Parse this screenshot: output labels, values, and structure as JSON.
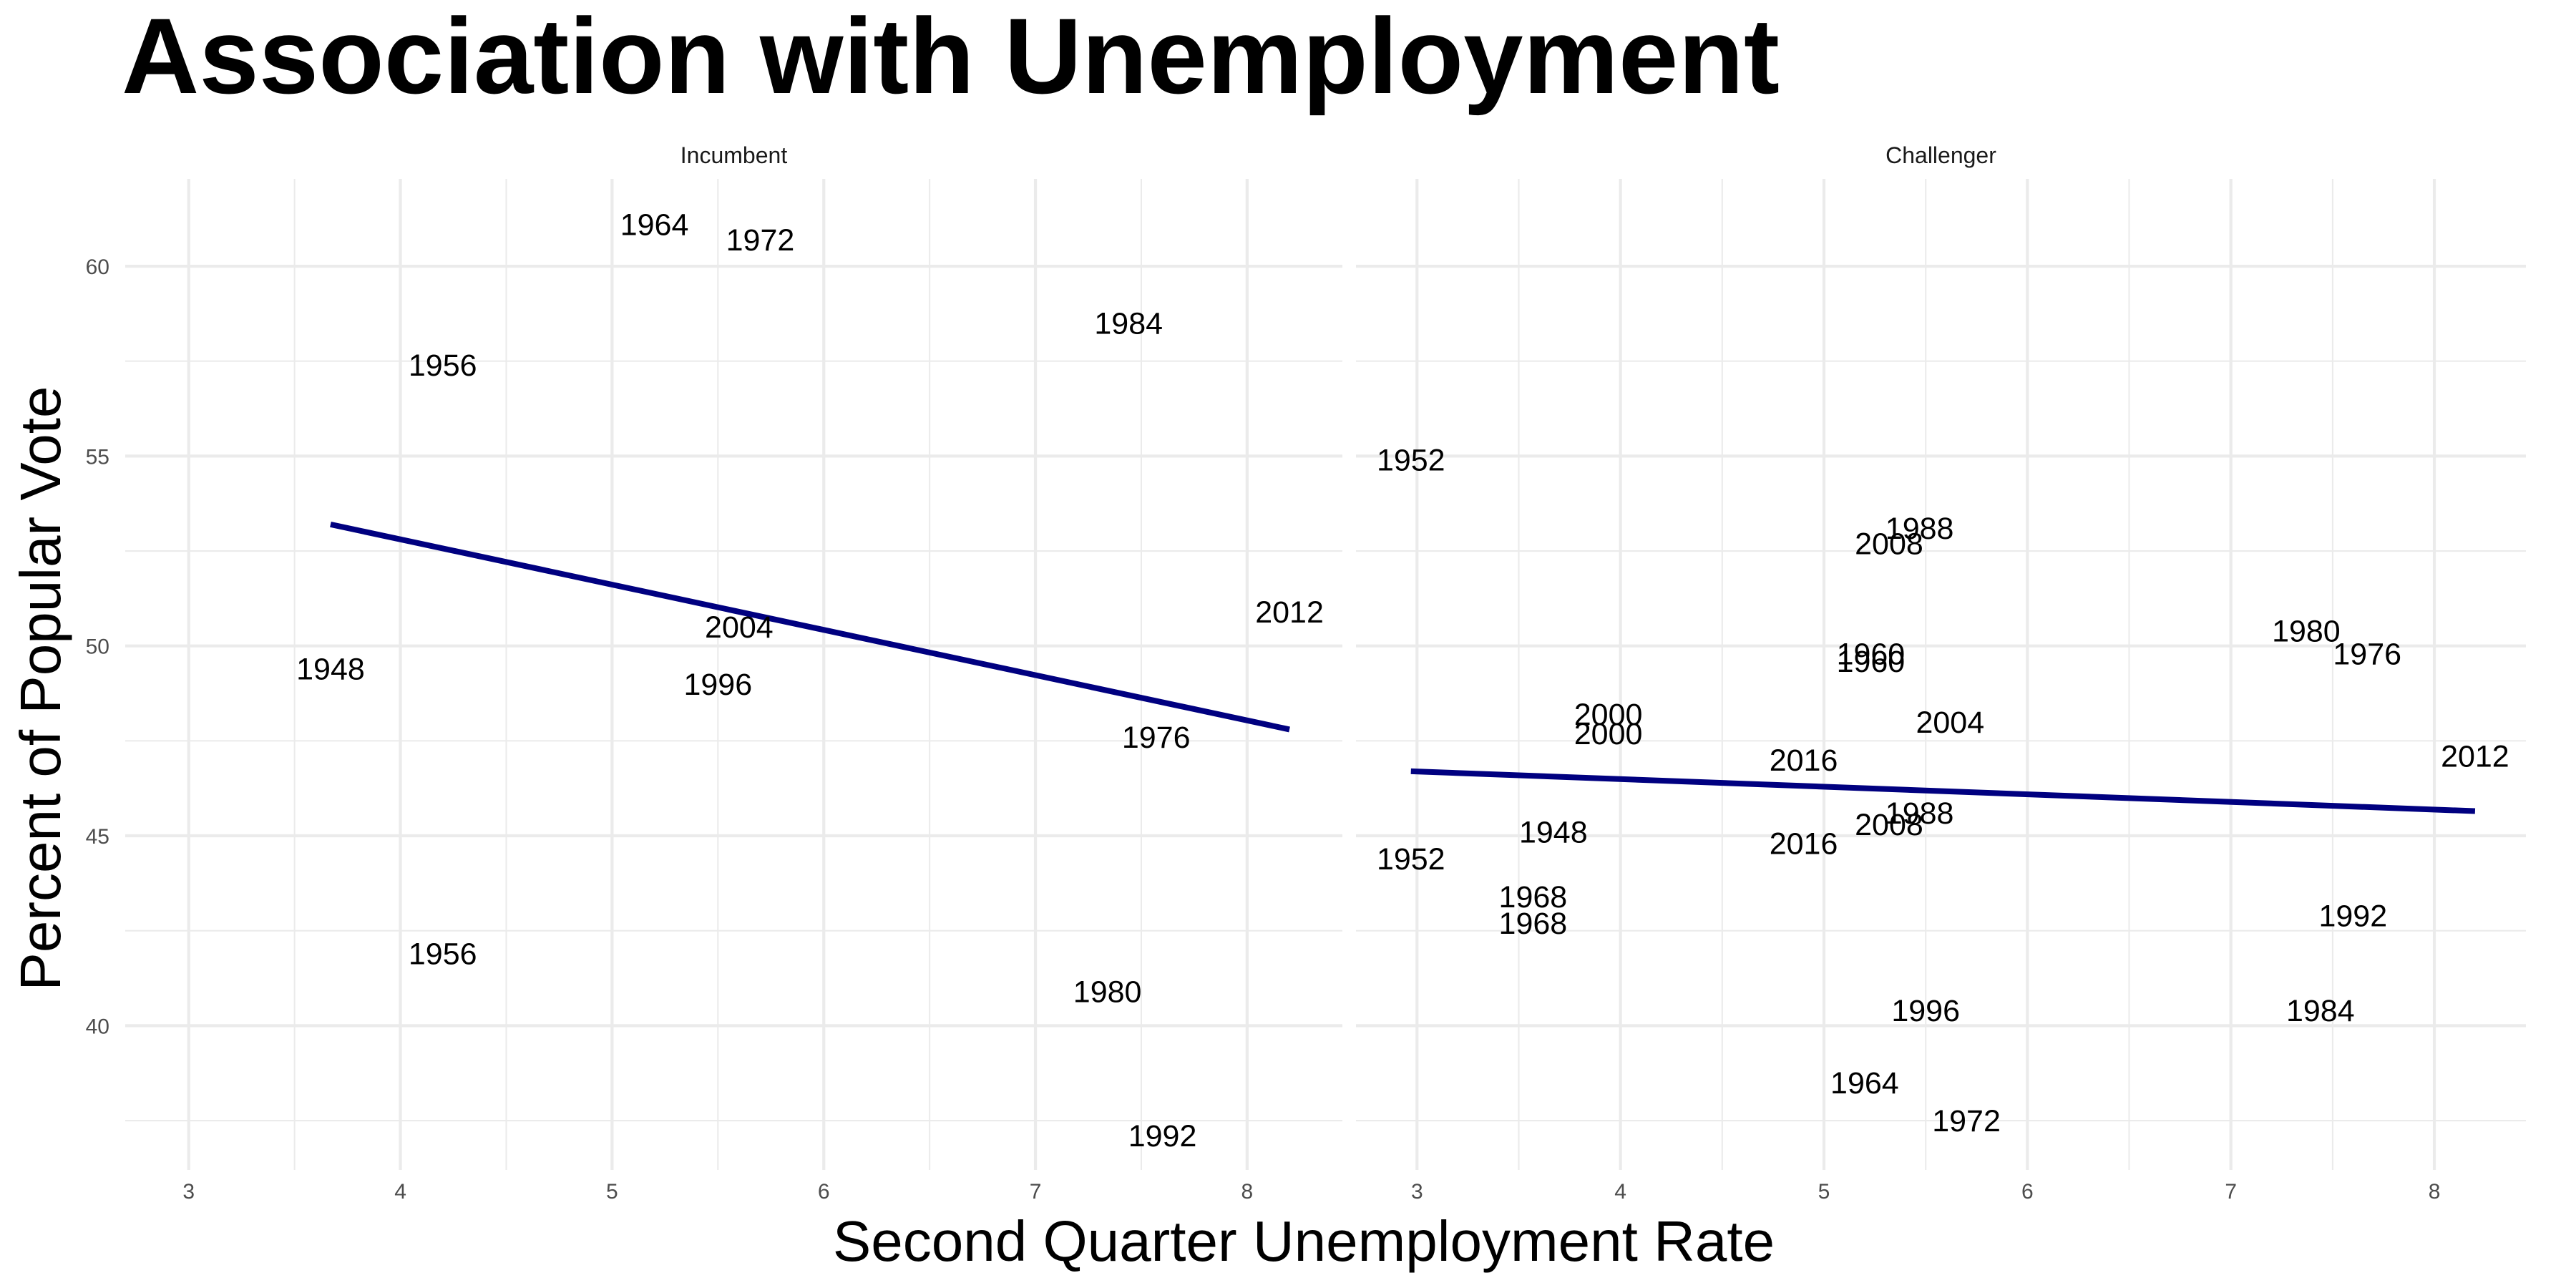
{
  "chart_data": {
    "type": "scatter",
    "title": "Association with Unemployment",
    "xlabel": "Second Quarter Unemployment Rate",
    "ylabel": "Percent of Popular Vote",
    "xlim": [
      2.7,
      8.45
    ],
    "ylim": [
      36.2,
      62.3
    ],
    "x_ticks": [
      3,
      4,
      5,
      6,
      7,
      8
    ],
    "y_ticks": [
      40,
      45,
      50,
      55,
      60
    ],
    "grid": true,
    "legend": "none",
    "trend_color": "#000080",
    "panels": [
      {
        "name": "Incumbent",
        "points": [
          {
            "label": "1964",
            "x": 5.2,
            "y": 61.1
          },
          {
            "label": "1972",
            "x": 5.7,
            "y": 60.7
          },
          {
            "label": "1984",
            "x": 7.44,
            "y": 58.5
          },
          {
            "label": "1956",
            "x": 4.2,
            "y": 57.4
          },
          {
            "label": "2012",
            "x": 8.2,
            "y": 50.9
          },
          {
            "label": "2004",
            "x": 5.6,
            "y": 50.5
          },
          {
            "label": "1948",
            "x": 3.67,
            "y": 49.4
          },
          {
            "label": "1996",
            "x": 5.5,
            "y": 49.0
          },
          {
            "label": "1976",
            "x": 7.57,
            "y": 47.6
          },
          {
            "label": "1956",
            "x": 4.2,
            "y": 41.9
          },
          {
            "label": "1980",
            "x": 7.34,
            "y": 40.9
          },
          {
            "label": "1992",
            "x": 7.6,
            "y": 37.1
          }
        ],
        "trend": {
          "x": [
            3.67,
            8.2
          ],
          "y": [
            53.2,
            47.8
          ]
        }
      },
      {
        "name": "Challenger",
        "points": [
          {
            "label": "1952",
            "x": 2.97,
            "y": 54.9
          },
          {
            "label": "1988",
            "x": 5.47,
            "y": 53.1
          },
          {
            "label": "2008",
            "x": 5.32,
            "y": 52.7
          },
          {
            "label": "1980",
            "x": 7.37,
            "y": 50.4
          },
          {
            "label": "1960",
            "x": 5.23,
            "y": 49.8
          },
          {
            "label": "1976",
            "x": 7.67,
            "y": 49.8
          },
          {
            "label": "1960",
            "x": 5.23,
            "y": 49.6
          },
          {
            "label": "2000",
            "x": 3.94,
            "y": 48.2
          },
          {
            "label": "2004",
            "x": 5.62,
            "y": 48.0
          },
          {
            "label": "2000",
            "x": 3.94,
            "y": 47.7
          },
          {
            "label": "2016",
            "x": 4.9,
            "y": 47.0
          },
          {
            "label": "2012",
            "x": 8.2,
            "y": 47.1
          },
          {
            "label": "1988",
            "x": 5.47,
            "y": 45.6
          },
          {
            "label": "2008",
            "x": 5.32,
            "y": 45.3
          },
          {
            "label": "1948",
            "x": 3.67,
            "y": 45.1
          },
          {
            "label": "2016",
            "x": 4.9,
            "y": 44.8
          },
          {
            "label": "1952",
            "x": 2.97,
            "y": 44.4
          },
          {
            "label": "1968",
            "x": 3.57,
            "y": 43.4
          },
          {
            "label": "1992",
            "x": 7.6,
            "y": 42.9
          },
          {
            "label": "1968",
            "x": 3.57,
            "y": 42.7
          },
          {
            "label": "1996",
            "x": 5.5,
            "y": 40.4
          },
          {
            "label": "1984",
            "x": 7.44,
            "y": 40.4
          },
          {
            "label": "1964",
            "x": 5.2,
            "y": 38.5
          },
          {
            "label": "1972",
            "x": 5.7,
            "y": 37.5
          }
        ],
        "trend": {
          "x": [
            2.97,
            8.2
          ],
          "y": [
            46.7,
            45.65
          ]
        }
      }
    ]
  }
}
